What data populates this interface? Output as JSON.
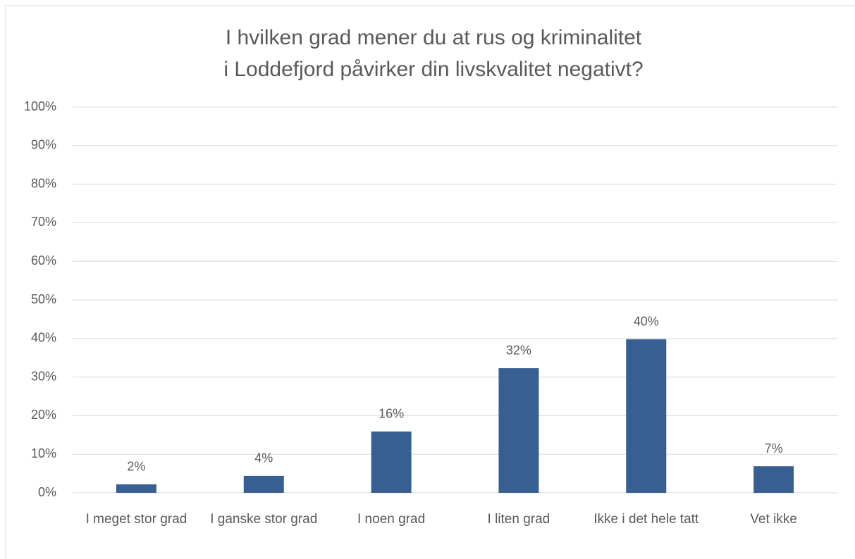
{
  "chart_data": {
    "type": "bar",
    "title": "I hvilken grad mener du at rus og kriminalitet i Loddefjord påvirker din livskvalitet negativt?",
    "categories": [
      "I meget stor grad",
      "I ganske stor grad",
      "I noen grad",
      "I liten grad",
      "Ikke i det hele tatt",
      "Vet ikke"
    ],
    "values": [
      2.2,
      4.4,
      15.9,
      32.3,
      39.8,
      6.9
    ],
    "value_labels": [
      "2%",
      "4%",
      "16%",
      "32%",
      "40%",
      "7%"
    ],
    "color": "#375f91",
    "ylim": [
      0,
      100
    ],
    "yticks": [
      {
        "value": 0,
        "label": "0%"
      },
      {
        "value": 10,
        "label": "10%"
      },
      {
        "value": 20,
        "label": "20%"
      },
      {
        "value": 30,
        "label": "30%"
      },
      {
        "value": 40,
        "label": "40%"
      },
      {
        "value": 50,
        "label": "50%"
      },
      {
        "value": 60,
        "label": "60%"
      },
      {
        "value": 70,
        "label": "70%"
      },
      {
        "value": 80,
        "label": "80%"
      },
      {
        "value": 90,
        "label": "90%"
      },
      {
        "value": 100,
        "label": "100%"
      }
    ],
    "grid": true
  }
}
